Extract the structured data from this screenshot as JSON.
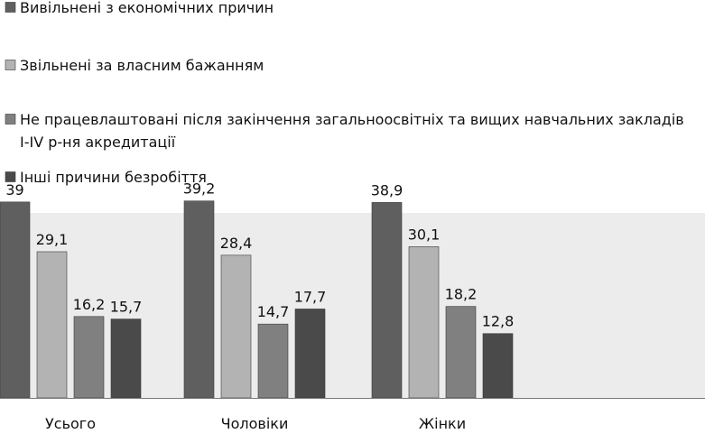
{
  "chart_data": {
    "type": "bar",
    "title": "",
    "xlabel": "",
    "ylabel": "",
    "categories": [
      "Усього",
      "Чоловіки",
      "Жінки"
    ],
    "ylim": [
      0,
      44
    ],
    "grid": false,
    "legend_position": "top",
    "series": [
      {
        "name": "Вивільнені з економічних причин",
        "legend_lines": [
          "Вивільнені з економічних причин"
        ],
        "color": "#5f5f5f",
        "values": [
          39,
          39.2,
          38.9
        ],
        "labels": [
          "39",
          "39,2",
          "38,9"
        ]
      },
      {
        "name": "Звільнені за власним бажанням",
        "legend_lines": [
          "Звільнені за власним бажанням"
        ],
        "color": "#b3b3b3",
        "values": [
          29.1,
          28.4,
          30.1
        ],
        "labels": [
          "29,1",
          "28,4",
          "30,1"
        ]
      },
      {
        "name": "Не працевлаштовані після закінчення загальноосвітніх та вищих навчальних закладів I-IV р-ня акредитації",
        "legend_lines": [
          "Не працевлаштовані після закінчення загальноосвітніх та вищих навчальних закладів",
          "I-IV р-ня акредитації"
        ],
        "color": "#808080",
        "values": [
          16.2,
          14.7,
          18.2
        ],
        "labels": [
          "16,2",
          "14,7",
          "18,2"
        ]
      },
      {
        "name": "Інші причини безробіття",
        "legend_lines": [
          "Інші причини безробіття"
        ],
        "color": "#4a4a4a",
        "values": [
          15.7,
          17.7,
          12.8
        ],
        "labels": [
          "15,7",
          "17,7",
          "12,8"
        ]
      }
    ],
    "colors": {
      "plot_background": "#ececec",
      "axis": "#7a7a7a",
      "bar_stroke": "#3a3a3a"
    }
  }
}
